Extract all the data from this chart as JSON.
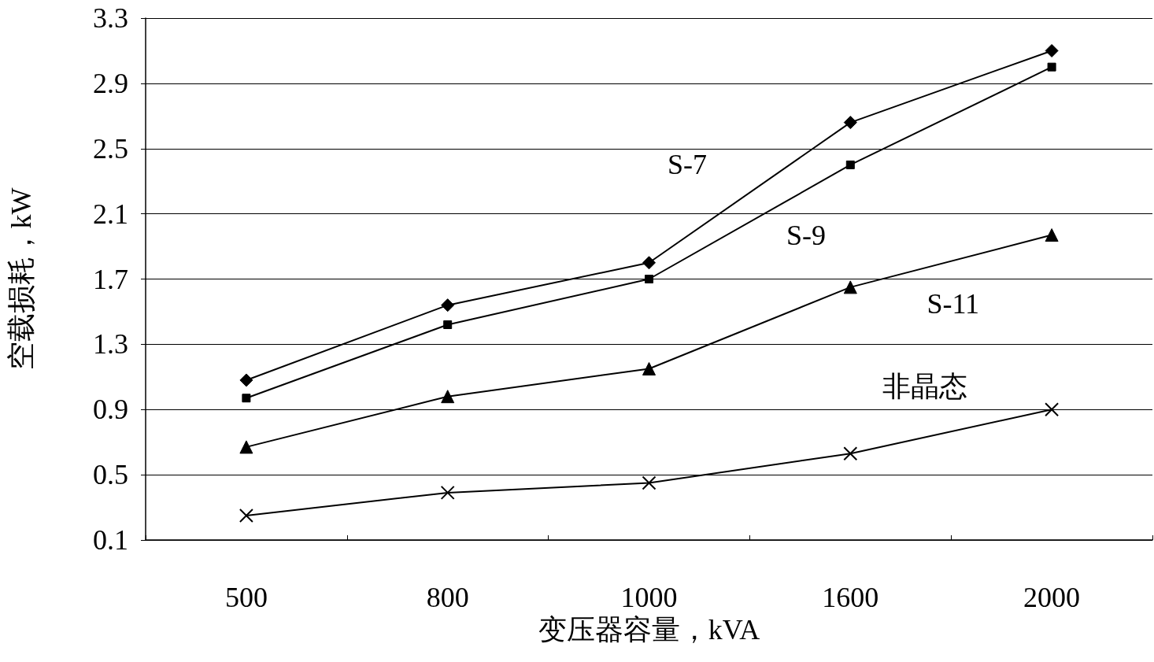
{
  "chart_data": {
    "type": "line",
    "xlabel": "变压器容量，kVA",
    "ylabel": "空载损耗，kW",
    "categories": [
      "500",
      "800",
      "1000",
      "1600",
      "2000"
    ],
    "ylim": [
      0.1,
      3.3
    ],
    "yticks": [
      0.1,
      0.5,
      0.9,
      1.3,
      1.7,
      2.1,
      2.5,
      2.9,
      3.3
    ],
    "grid": "y",
    "legend": false,
    "line_style": "solid",
    "series": [
      {
        "name": "S-7",
        "color": "#000000",
        "marker": "diamond",
        "values": [
          1.08,
          1.54,
          1.8,
          2.66,
          3.1
        ]
      },
      {
        "name": "S-9",
        "color": "#000000",
        "marker": "square",
        "values": [
          0.97,
          1.42,
          1.7,
          2.4,
          3.0
        ]
      },
      {
        "name": "S-11",
        "color": "#000000",
        "marker": "triangle",
        "values": [
          0.67,
          0.98,
          1.15,
          1.65,
          1.97
        ]
      },
      {
        "name": "非晶态",
        "color": "#000000",
        "marker": "cross",
        "values": [
          0.25,
          0.39,
          0.45,
          0.63,
          0.9
        ]
      }
    ]
  }
}
